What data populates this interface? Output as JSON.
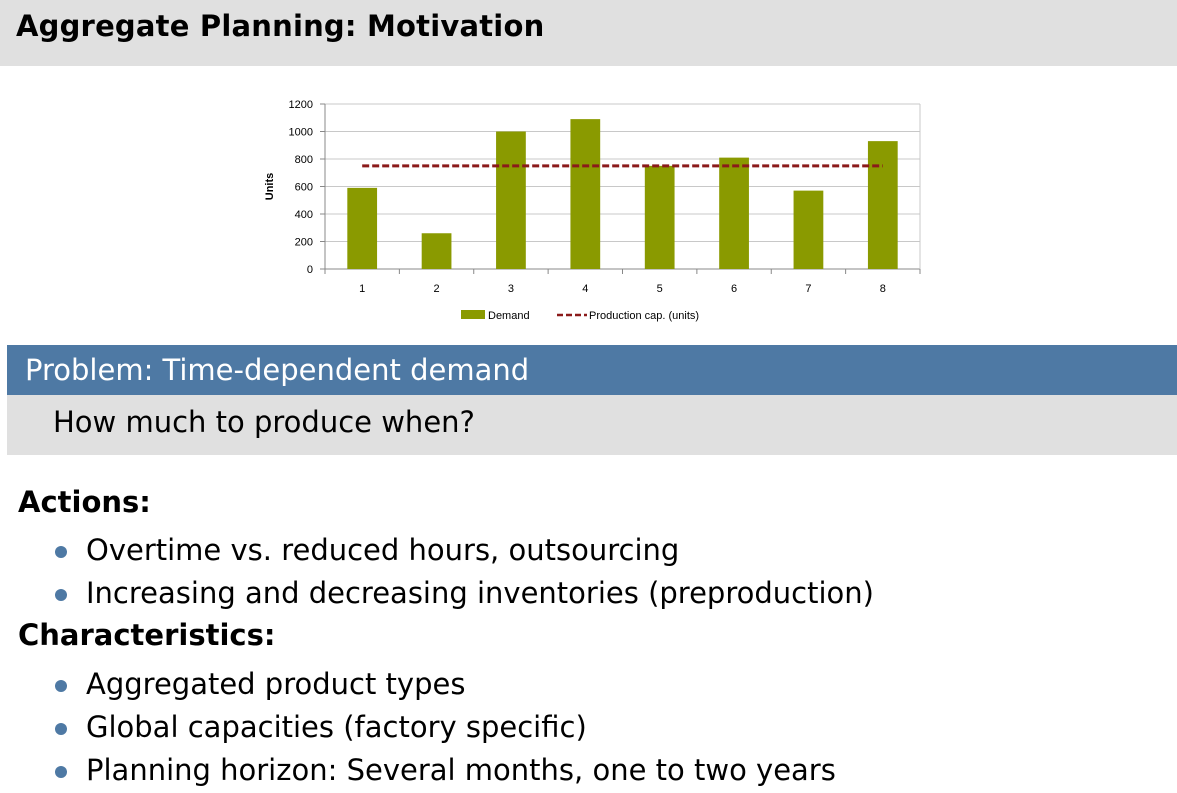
{
  "slide": {
    "title": "Aggregate Planning: Motivation"
  },
  "block": {
    "heading": "Problem: Time-dependent demand",
    "body": "How much to produce when?"
  },
  "actions": {
    "heading": "Actions:",
    "items": [
      "Overtime vs. reduced hours, outsourcing",
      "Increasing and decreasing inventories (preproduction)"
    ]
  },
  "characteristics": {
    "heading": "Characteristics:",
    "items": [
      "Aggregated product types",
      "Global capacities (factory specific)",
      "Planning horizon: Several months, one to two years"
    ]
  },
  "colors": {
    "demand_bar": "#8a9a00",
    "capacity_line": "#8b1a1a",
    "block_header": "#4e79a4",
    "block_body": "#e0e0e0",
    "title_bar": "#e0e0e0"
  },
  "chart_data": {
    "type": "bar",
    "title": "",
    "xlabel": "",
    "ylabel": "Units",
    "categories": [
      "1",
      "2",
      "3",
      "4",
      "5",
      "6",
      "7",
      "8"
    ],
    "ylim": [
      0,
      1200
    ],
    "yticks": [
      0,
      200,
      400,
      600,
      800,
      1000,
      1200
    ],
    "grid": true,
    "legend_position": "bottom",
    "series": [
      {
        "name": "Demand",
        "kind": "bar",
        "values": [
          590,
          260,
          1000,
          1090,
          750,
          810,
          570,
          930
        ]
      },
      {
        "name": "Production cap. (units)",
        "kind": "dashed-line",
        "values": [
          750,
          750,
          750,
          750,
          750,
          750,
          750,
          750
        ]
      }
    ]
  }
}
